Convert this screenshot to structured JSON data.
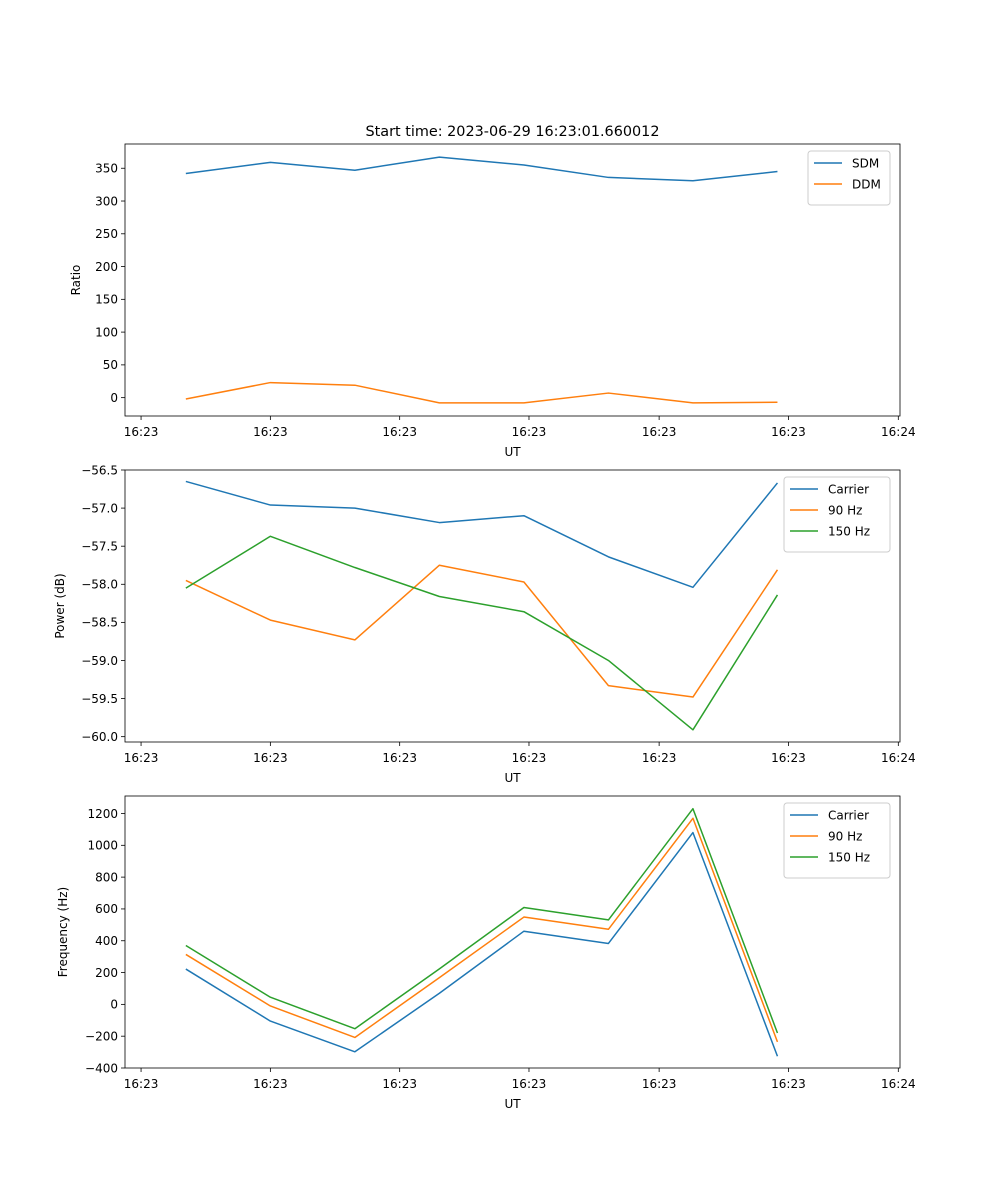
{
  "figure_title": "Start time: 2023-06-29 16:23:01.660012",
  "colors": {
    "blue": "#1f77b4",
    "orange": "#ff7f0e",
    "green": "#2ca02c"
  },
  "chart_data": [
    {
      "type": "line",
      "title": "Start time: 2023-06-29 16:23:01.660012",
      "xlabel": "UT",
      "ylabel": "Ratio",
      "x": [
        1,
        2,
        3,
        4,
        5,
        6,
        7,
        8
      ],
      "xlim": [
        0.28,
        9.45
      ],
      "x_ticks": [
        0.47,
        2.0,
        3.53,
        5.06,
        6.6,
        8.13,
        9.43
      ],
      "x_tick_labels": [
        "16:23",
        "16:23",
        "16:23",
        "16:23",
        "16:23",
        "16:23",
        "16:24"
      ],
      "ylim": [
        -28,
        387
      ],
      "y_ticks": [
        0,
        50,
        100,
        150,
        200,
        250,
        300,
        350
      ],
      "legend_position": "top-right",
      "grid": false,
      "series": [
        {
          "name": "SDM",
          "color": "#1f77b4",
          "values": [
            342,
            359,
            347,
            367,
            355,
            336,
            331,
            345
          ]
        },
        {
          "name": "DDM",
          "color": "#ff7f0e",
          "values": [
            -2,
            23,
            19,
            -8,
            -8,
            7,
            -8,
            -7
          ]
        }
      ]
    },
    {
      "type": "line",
      "title": "",
      "xlabel": "UT",
      "ylabel": "Power (dB)",
      "x": [
        1,
        2,
        3,
        4,
        5,
        6,
        7,
        8
      ],
      "xlim": [
        0.28,
        9.45
      ],
      "x_ticks": [
        0.47,
        2.0,
        3.53,
        5.06,
        6.6,
        8.13,
        9.43
      ],
      "x_tick_labels": [
        "16:23",
        "16:23",
        "16:23",
        "16:23",
        "16:23",
        "16:23",
        "16:24"
      ],
      "ylim": [
        -60.07,
        -56.5
      ],
      "y_ticks": [
        -60.0,
        -59.5,
        -59.0,
        -58.5,
        -58.0,
        -57.5,
        -57.0,
        -56.5
      ],
      "legend_position": "top-right",
      "grid": false,
      "series": [
        {
          "name": "Carrier",
          "color": "#1f77b4",
          "values": [
            -56.65,
            -56.96,
            -57.0,
            -57.19,
            -57.1,
            -57.64,
            -58.04,
            -56.67
          ]
        },
        {
          "name": "90 Hz",
          "color": "#ff7f0e",
          "values": [
            -57.95,
            -58.47,
            -58.73,
            -57.75,
            -57.97,
            -59.33,
            -59.48,
            -57.81
          ]
        },
        {
          "name": "150 Hz",
          "color": "#2ca02c",
          "values": [
            -58.05,
            -57.37,
            -57.78,
            -58.16,
            -58.36,
            -59.0,
            -59.91,
            -58.14
          ]
        }
      ]
    },
    {
      "type": "line",
      "title": "",
      "xlabel": "UT",
      "ylabel": "Frequency (Hz)",
      "x": [
        1,
        2,
        3,
        4,
        5,
        6,
        7,
        8
      ],
      "xlim": [
        0.28,
        9.45
      ],
      "x_ticks": [
        0.47,
        2.0,
        3.53,
        5.06,
        6.6,
        8.13,
        9.43
      ],
      "x_tick_labels": [
        "16:23",
        "16:23",
        "16:23",
        "16:23",
        "16:23",
        "16:23",
        "16:24"
      ],
      "ylim": [
        -400,
        1310
      ],
      "y_ticks": [
        -400,
        -200,
        0,
        200,
        400,
        600,
        800,
        1000,
        1200
      ],
      "legend_position": "top-right",
      "grid": false,
      "series": [
        {
          "name": "Carrier",
          "color": "#1f77b4",
          "values": [
            222,
            -105,
            -298,
            70,
            460,
            383,
            1080,
            -326
          ]
        },
        {
          "name": "90 Hz",
          "color": "#ff7f0e",
          "values": [
            314,
            -10,
            -208,
            168,
            549,
            472,
            1170,
            -236
          ]
        },
        {
          "name": "150 Hz",
          "color": "#2ca02c",
          "values": [
            370,
            45,
            -153,
            223,
            609,
            531,
            1230,
            -180
          ]
        }
      ]
    }
  ]
}
